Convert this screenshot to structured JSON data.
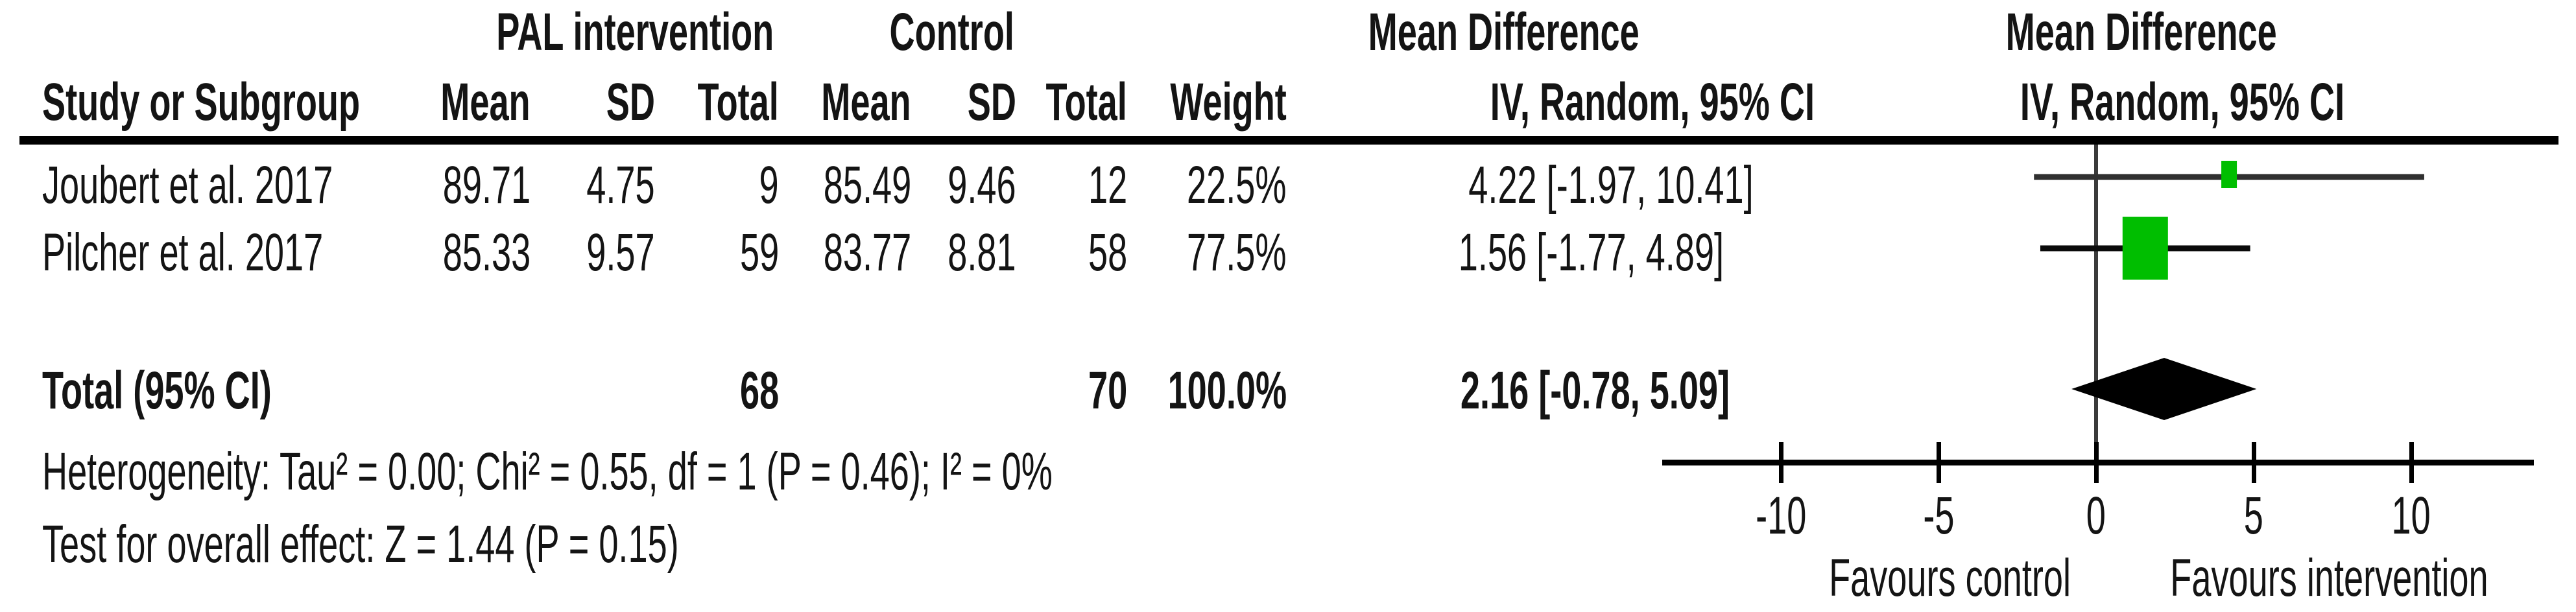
{
  "table": {
    "group_headers": {
      "experimental": "PAL intervention",
      "control": "Control",
      "effect_left": "Mean Difference",
      "effect_right": "Mean Difference"
    },
    "col_headers": {
      "study": "Study or Subgroup",
      "mean1": "Mean",
      "sd1": "SD",
      "total1": "Total",
      "mean2": "Mean",
      "sd2": "SD",
      "total2": "Total",
      "weight": "Weight",
      "ci": "IV, Random, 95% CI",
      "plot_sub": "IV, Random, 95% CI"
    },
    "rows": [
      {
        "study": "Joubert et al. 2017",
        "mean1": "89.71",
        "sd1": "4.75",
        "total1": "9",
        "mean2": "85.49",
        "sd2": "9.46",
        "total2": "12",
        "weight": "22.5%",
        "ci": "4.22 [-1.97, 10.41]"
      },
      {
        "study": "Pilcher et al. 2017",
        "mean1": "85.33",
        "sd1": "9.57",
        "total1": "59",
        "mean2": "83.77",
        "sd2": "8.81",
        "total2": "58",
        "weight": "77.5%",
        "ci": "1.56 [-1.77, 4.89]"
      }
    ],
    "total_row": {
      "label": "Total (95% CI)",
      "total1": "68",
      "total2": "70",
      "weight": "100.0%",
      "ci": "2.16 [-0.78, 5.09]"
    },
    "heterogeneity": "Heterogeneity: Tau² = 0.00; Chi² = 0.55, df = 1 (P = 0.46); I² = 0%",
    "overall_effect": "Test for overall effect: Z = 1.44 (P = 0.15)"
  },
  "chart_data": {
    "type": "forest",
    "effect_measure": "Mean Difference",
    "method_label": "IV, Random, 95% CI",
    "studies": [
      {
        "name": "Joubert et al. 2017",
        "md": 4.22,
        "ci_low": -1.97,
        "ci_high": 10.41,
        "weight_pct": 22.5
      },
      {
        "name": "Pilcher et al. 2017",
        "md": 1.56,
        "ci_low": -1.77,
        "ci_high": 4.89,
        "weight_pct": 77.5
      }
    ],
    "total": {
      "md": 2.16,
      "ci_low": -0.78,
      "ci_high": 5.09
    },
    "axis": {
      "min": -13.8,
      "max": 13.9,
      "ticks": [
        -10,
        -5,
        0,
        5,
        10
      ],
      "tick_labels": [
        "-10",
        "-5",
        "0",
        "5",
        "10"
      ],
      "grid": false
    },
    "favours_left": "Favours control",
    "favours_right": "Favours intervention",
    "marker_color": "#00be00",
    "diamond_color": "#000000"
  }
}
